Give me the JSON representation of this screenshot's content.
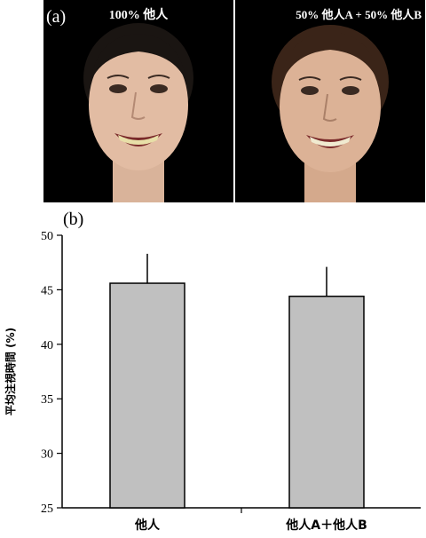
{
  "panels": {
    "a_label": "(a)",
    "b_label": "(b)",
    "photo_left_caption": "100% 他人",
    "photo_right_caption": "50% 他人A + 50% 他人B"
  },
  "chart_data": {
    "type": "bar",
    "categories": [
      "他人",
      "他人A＋他人B"
    ],
    "values": [
      45.6,
      44.4
    ],
    "errors": [
      2.7,
      2.7
    ],
    "ylabel": "平均注視時間 (%)",
    "ylim": [
      25,
      50
    ],
    "yticks": [
      25,
      30,
      35,
      40,
      45,
      50
    ],
    "bar_color": "#c0c0c0",
    "grid": false
  }
}
